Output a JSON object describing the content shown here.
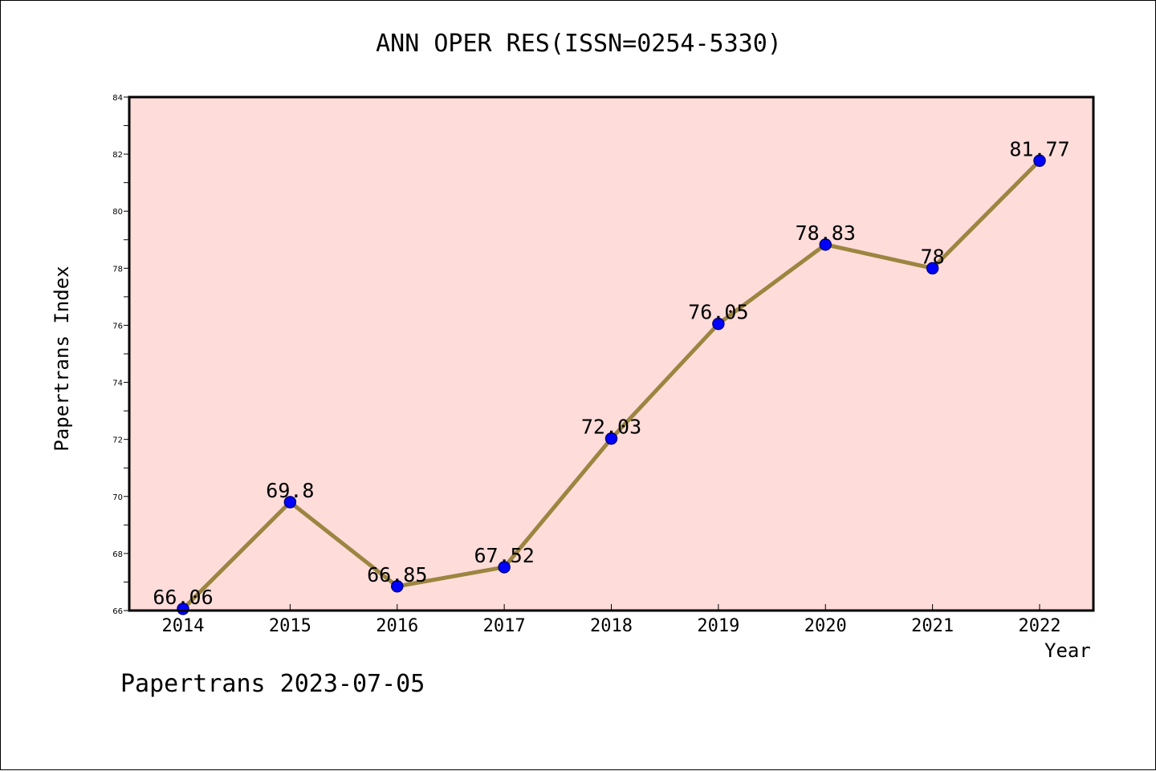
{
  "header": {
    "title": "ANN OPER RES(ISSN=0254-5330)"
  },
  "footer": {
    "watermark": "Papertrans 2023-07-05"
  },
  "chart_data": {
    "type": "line",
    "title": "ANN OPER RES(ISSN=0254-5330)",
    "xlabel": "Year",
    "ylabel": "Papertrans Index",
    "categories": [
      "2014",
      "2015",
      "2016",
      "2017",
      "2018",
      "2019",
      "2020",
      "2021",
      "2022"
    ],
    "series": [
      {
        "values": [
          66.06,
          69.8,
          66.85,
          67.52,
          72.03,
          76.05,
          78.83,
          78,
          81.77
        ],
        "labels": [
          "66.06",
          "69.8",
          "66.85",
          "67.52",
          "72.03",
          "76.05",
          "78.83",
          "78",
          "81.77"
        ]
      }
    ],
    "ylim": [
      66,
      84
    ],
    "yticks": [
      66,
      68,
      70,
      72,
      74,
      76,
      78,
      80,
      82,
      84
    ],
    "grid": false,
    "legend": "none",
    "colors": {
      "plot_background": "#FDDCDA",
      "line": "#9C8540",
      "marker": "#0000FF",
      "marker_edge": "#000080"
    }
  }
}
